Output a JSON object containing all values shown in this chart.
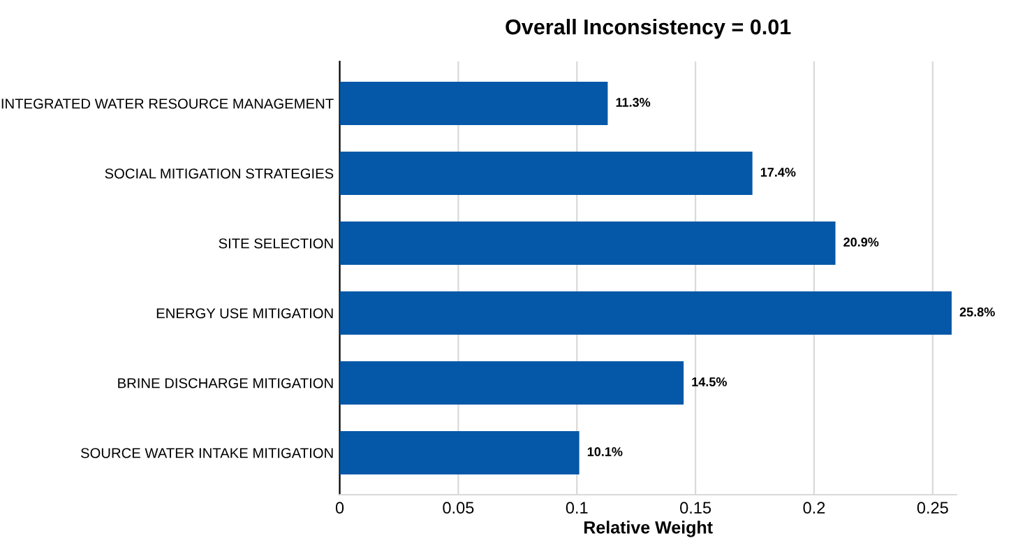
{
  "chart_data": {
    "type": "bar",
    "orientation": "horizontal",
    "title": "Overall Inconsistency = 0.01",
    "xlabel": "Relative Weight",
    "categories": [
      "INTEGRATED WATER RESOURCE MANAGEMENT",
      "SOCIAL MITIGATION STRATEGIES",
      "SITE SELECTION",
      "ENERGY USE MITIGATION",
      "BRINE DISCHARGE MITIGATION",
      "SOURCE WATER INTAKE MITIGATION"
    ],
    "values": [
      0.113,
      0.174,
      0.209,
      0.258,
      0.145,
      0.101
    ],
    "value_labels": [
      "11.3%",
      "17.4%",
      "20.9%",
      "25.8%",
      "14.5%",
      "10.1%"
    ],
    "color": "#0558a8",
    "xlim": [
      0,
      0.26
    ],
    "xticks": [
      0,
      0.05,
      0.1,
      0.15,
      0.2,
      0.25
    ],
    "grid": "x"
  }
}
